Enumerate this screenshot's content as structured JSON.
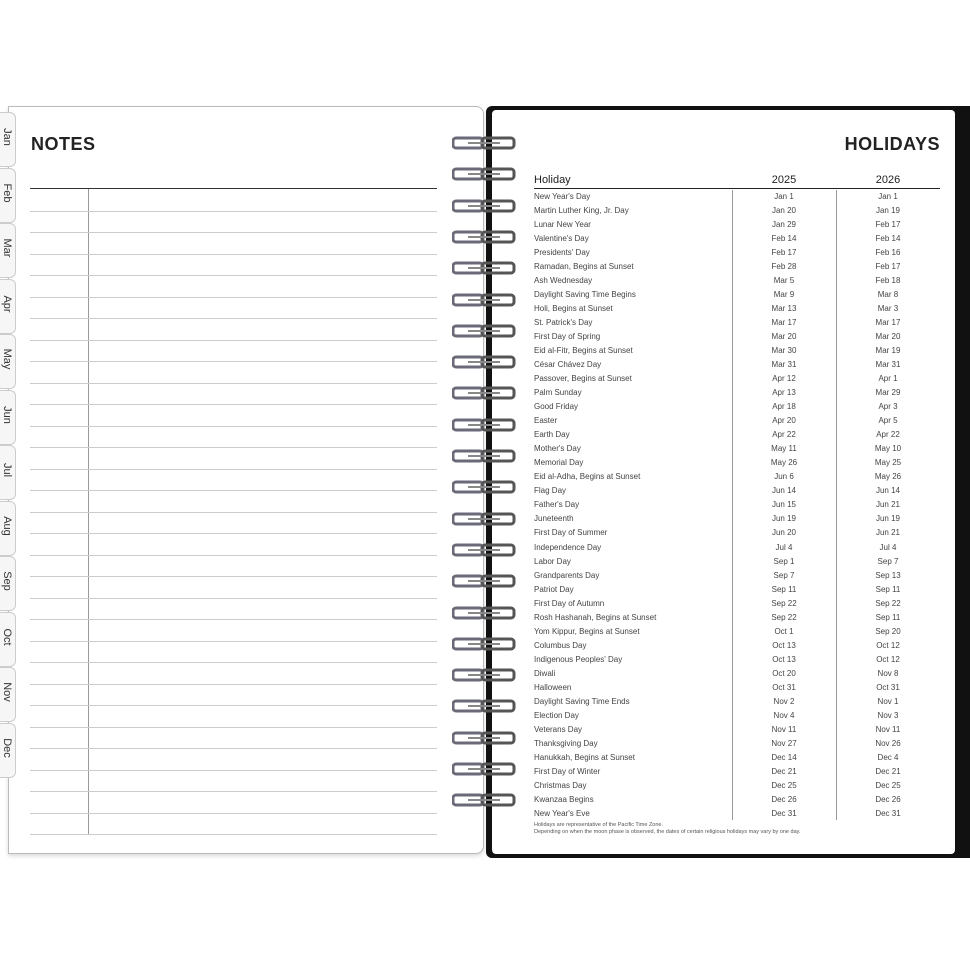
{
  "tabs": [
    "Jan",
    "Feb",
    "Mar",
    "Apr",
    "May",
    "Jun",
    "Jul",
    "Aug",
    "Sep",
    "Oct",
    "Nov",
    "Dec"
  ],
  "notes": {
    "title": "NOTES"
  },
  "holidays": {
    "title": "HOLIDAYS",
    "headers": [
      "Holiday",
      "2025",
      "2026"
    ],
    "rows": [
      [
        "New Year's Day",
        "Jan 1",
        "Jan 1"
      ],
      [
        "Martin Luther King, Jr. Day",
        "Jan 20",
        "Jan 19"
      ],
      [
        "Lunar New Year",
        "Jan 29",
        "Feb 17"
      ],
      [
        "Valentine's Day",
        "Feb 14",
        "Feb 14"
      ],
      [
        "Presidents' Day",
        "Feb 17",
        "Feb 16"
      ],
      [
        "Ramadan, Begins at Sunset",
        "Feb 28",
        "Feb 17"
      ],
      [
        "Ash Wednesday",
        "Mar 5",
        "Feb 18"
      ],
      [
        "Daylight Saving Time Begins",
        "Mar 9",
        "Mar 8"
      ],
      [
        "Holi, Begins at Sunset",
        "Mar 13",
        "Mar 3"
      ],
      [
        "St. Patrick's Day",
        "Mar 17",
        "Mar 17"
      ],
      [
        "First Day of Spring",
        "Mar 20",
        "Mar 20"
      ],
      [
        "Eid al-Fitr, Begins at Sunset",
        "Mar 30",
        "Mar 19"
      ],
      [
        "César Chávez Day",
        "Mar 31",
        "Mar 31"
      ],
      [
        "Passover, Begins at Sunset",
        "Apr 12",
        "Apr 1"
      ],
      [
        "Palm Sunday",
        "Apr 13",
        "Mar 29"
      ],
      [
        "Good Friday",
        "Apr 18",
        "Apr 3"
      ],
      [
        "Easter",
        "Apr 20",
        "Apr 5"
      ],
      [
        "Earth Day",
        "Apr 22",
        "Apr 22"
      ],
      [
        "Mother's Day",
        "May 11",
        "May 10"
      ],
      [
        "Memorial Day",
        "May 26",
        "May 25"
      ],
      [
        "Eid al-Adha, Begins at Sunset",
        "Jun 6",
        "May 26"
      ],
      [
        "Flag Day",
        "Jun 14",
        "Jun 14"
      ],
      [
        "Father's Day",
        "Jun 15",
        "Jun 21"
      ],
      [
        "Juneteenth",
        "Jun 19",
        "Jun 19"
      ],
      [
        "First Day of Summer",
        "Jun 20",
        "Jun 21"
      ],
      [
        "Independence Day",
        "Jul 4",
        "Jul 4"
      ],
      [
        "Labor Day",
        "Sep 1",
        "Sep 7"
      ],
      [
        "Grandparents Day",
        "Sep 7",
        "Sep 13"
      ],
      [
        "Patriot Day",
        "Sep 11",
        "Sep 11"
      ],
      [
        "First Day of Autumn",
        "Sep 22",
        "Sep 22"
      ],
      [
        "Rosh Hashanah, Begins at Sunset",
        "Sep 22",
        "Sep 11"
      ],
      [
        "Yom Kippur, Begins at Sunset",
        "Oct 1",
        "Sep 20"
      ],
      [
        "Columbus Day",
        "Oct 13",
        "Oct 12"
      ],
      [
        "Indigenous Peoples' Day",
        "Oct 13",
        "Oct 12"
      ],
      [
        "Diwali",
        "Oct 20",
        "Nov 8"
      ],
      [
        "Halloween",
        "Oct 31",
        "Oct 31"
      ],
      [
        "Daylight Saving Time Ends",
        "Nov 2",
        "Nov 1"
      ],
      [
        "Election Day",
        "Nov 4",
        "Nov 3"
      ],
      [
        "Veterans Day",
        "Nov 11",
        "Nov 11"
      ],
      [
        "Thanksgiving Day",
        "Nov 27",
        "Nov 26"
      ],
      [
        "Hanukkah, Begins at Sunset",
        "Dec 14",
        "Dec 4"
      ],
      [
        "First Day of Winter",
        "Dec 21",
        "Dec 21"
      ],
      [
        "Christmas Day",
        "Dec 25",
        "Dec 25"
      ],
      [
        "Kwanzaa Begins",
        "Dec 26",
        "Dec 26"
      ],
      [
        "New Year's Eve",
        "Dec 31",
        "Dec 31"
      ]
    ],
    "footnotes": [
      "Holidays are representative of the Pacific Time Zone.",
      "Depending on when the moon phase is observed, the dates of certain religious holidays may vary by one day."
    ]
  },
  "colors": {
    "cover": "#111111",
    "ring": "#6a6a78"
  }
}
